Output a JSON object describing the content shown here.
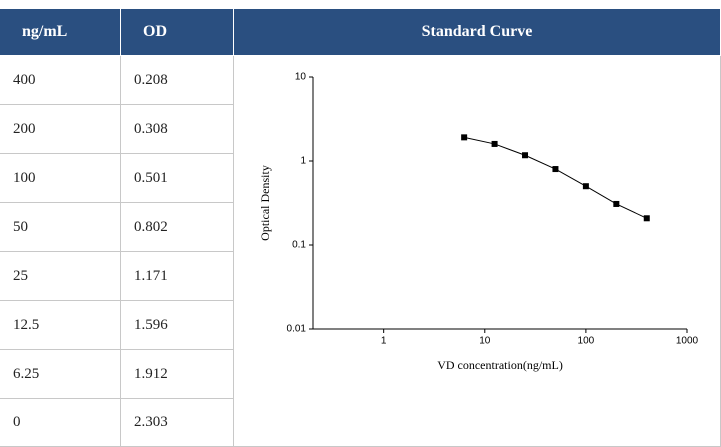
{
  "table": {
    "header": [
      "ng/mL",
      "OD",
      "Standard Curve"
    ],
    "rows": [
      [
        "400",
        "0.208"
      ],
      [
        "200",
        "0.308"
      ],
      [
        "100",
        "0.501"
      ],
      [
        "50",
        "0.802"
      ],
      [
        "25",
        "1.171"
      ],
      [
        "12.5",
        "1.596"
      ],
      [
        "6.25",
        "1.912"
      ],
      [
        "0",
        "2.303"
      ]
    ]
  },
  "chart_data": {
    "type": "line",
    "x_label": "VD concentration(ng/mL)",
    "y_label": "Optical Density",
    "x": [
      6.25,
      12.5,
      25,
      50,
      100,
      200,
      400
    ],
    "values": [
      1.912,
      1.596,
      1.171,
      0.802,
      0.501,
      0.308,
      0.208
    ],
    "color": "#000000",
    "log_x": true,
    "log_y": true,
    "xlim": [
      0.2,
      1000
    ],
    "xticks": [
      1,
      10,
      100,
      1000
    ],
    "ylim": [
      0.01,
      10
    ],
    "yticks": [
      0.01,
      0.1,
      1,
      10
    ]
  }
}
